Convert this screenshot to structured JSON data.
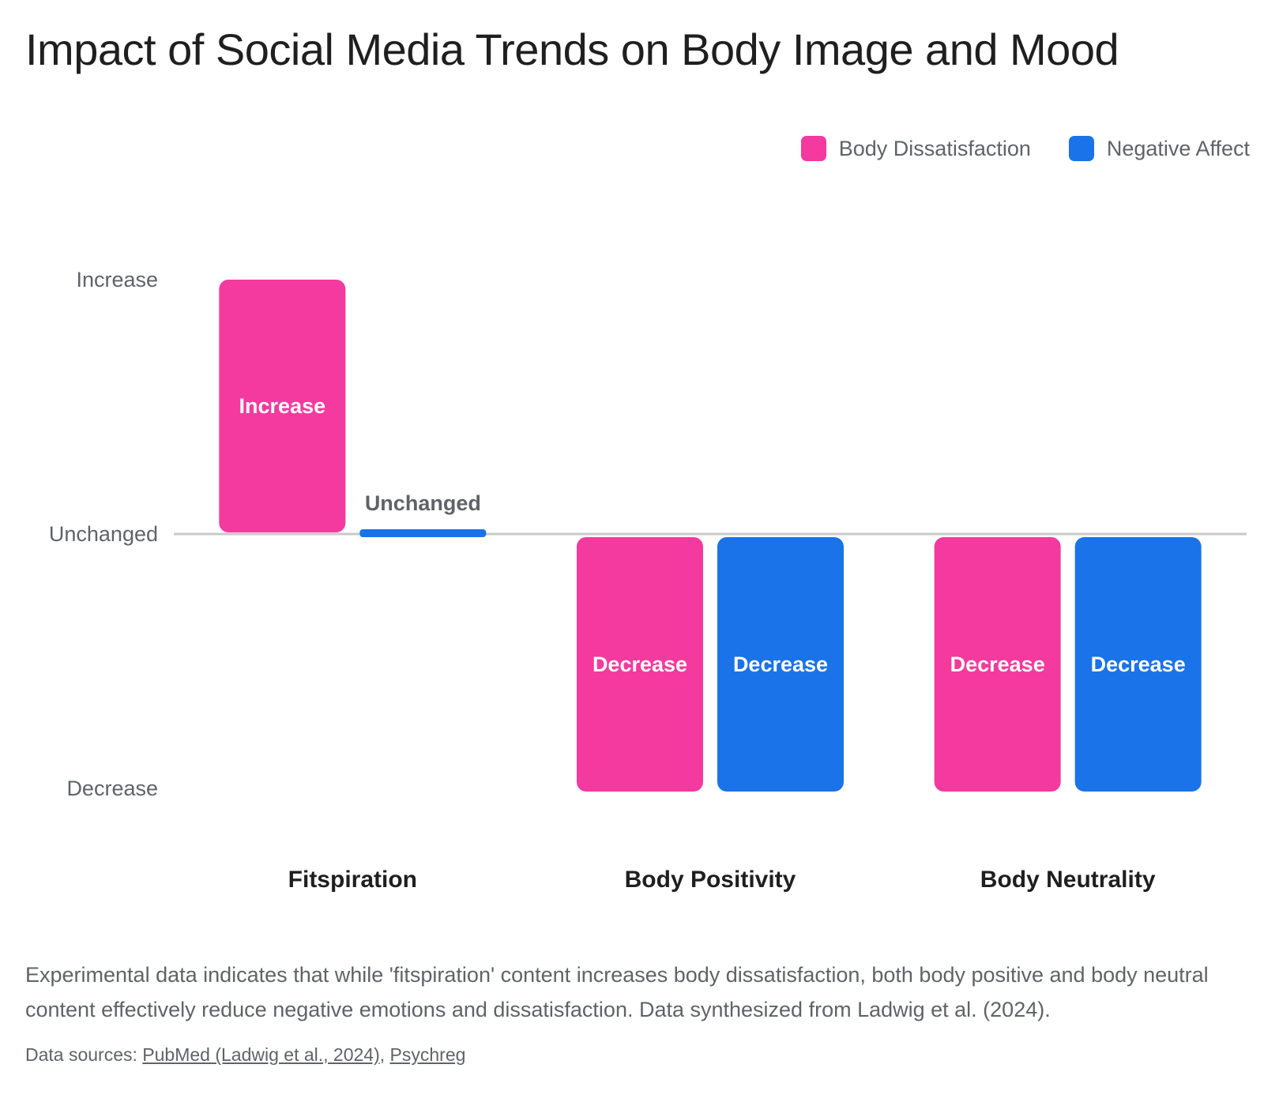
{
  "title": "Impact of Social Media Trends on Body Image and Mood",
  "colors": {
    "body_dissatisfaction": "#f4399f",
    "negative_affect": "#1a73e8",
    "axis_line": "#c8c8c8",
    "tick_text": "#5f6368"
  },
  "legend": {
    "items": [
      {
        "label": "Body Dissatisfaction",
        "color": "#f4399f"
      },
      {
        "label": "Negative Affect",
        "color": "#1a73e8"
      }
    ]
  },
  "chart_data": {
    "type": "bar",
    "categories": [
      "Fitspiration",
      "Body Positivity",
      "Body Neutrality"
    ],
    "y_ticks": [
      "Decrease",
      "Unchanged",
      "Increase"
    ],
    "y_tick_values": [
      -1,
      0,
      1
    ],
    "ylim": [
      -1,
      1
    ],
    "grid": false,
    "legend_position": "top-right",
    "series": [
      {
        "name": "Body Dissatisfaction",
        "color": "#f4399f",
        "values": [
          1,
          -1,
          -1
        ],
        "labels": [
          "Increase",
          "Decrease",
          "Decrease"
        ]
      },
      {
        "name": "Negative Affect",
        "color": "#1a73e8",
        "values": [
          0,
          -1,
          -1
        ],
        "labels": [
          "Unchanged",
          "Decrease",
          "Decrease"
        ]
      }
    ]
  },
  "description": "Experimental data indicates that while 'fitspiration' content increases body dissatisfaction, both body positive and body neutral content effectively reduce negative emotions and dissatisfaction. Data synthesized from Ladwig et al. (2024).",
  "sources": {
    "prefix": "Data sources: ",
    "links": [
      "PubMed (Ladwig et al., 2024)",
      "Psychreg"
    ],
    "separator": ", "
  }
}
